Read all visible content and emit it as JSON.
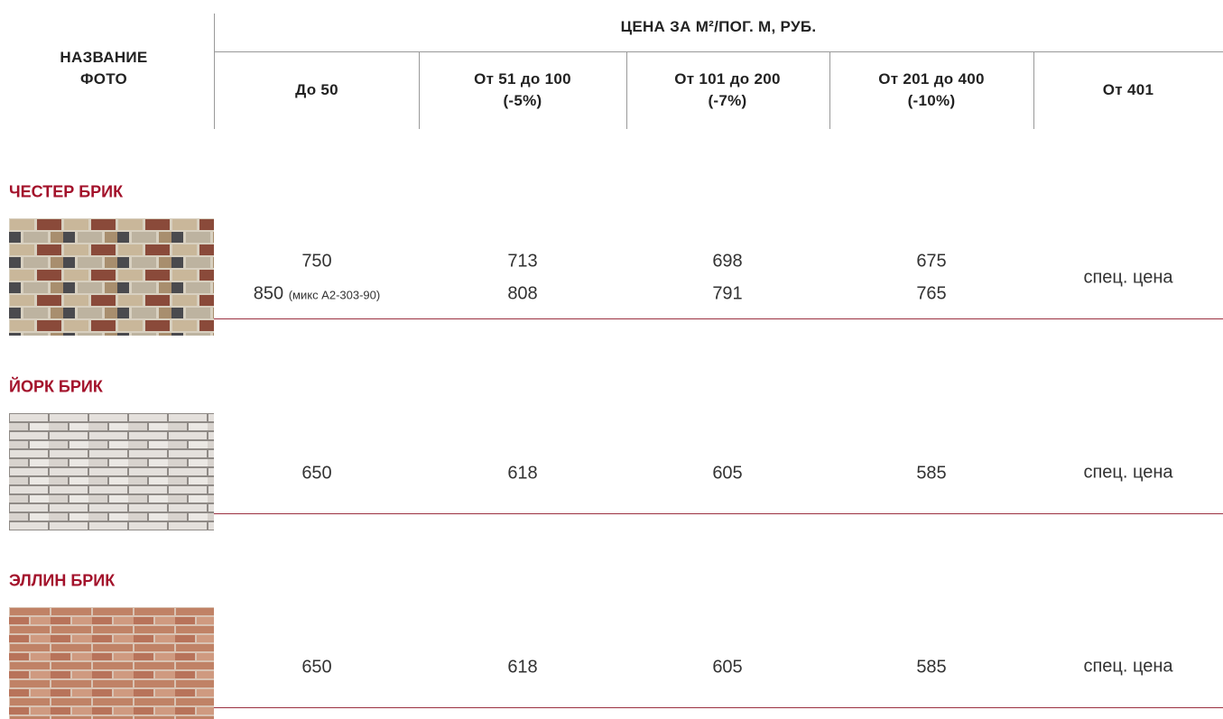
{
  "header": {
    "name_column": "НАЗВАНИЕ ФОТО",
    "price_title": "ЦЕНА ЗА М²/ПОГ. М, РУБ.",
    "columns": [
      [
        "До 50"
      ],
      [
        "От 51 до 100",
        "(-5%)"
      ],
      [
        "От 101 до 200",
        "(-7%)"
      ],
      [
        "От 201 до 400",
        "(-10%)"
      ],
      [
        "От 401"
      ]
    ]
  },
  "products": [
    {
      "name": "ЧЕСТЕР БРИК",
      "rows": [
        [
          750,
          713,
          698,
          675
        ],
        [
          850,
          808,
          791,
          765
        ]
      ],
      "note": "(микс А2-303-90)",
      "special": "спец. цена"
    },
    {
      "name": "ЙОРК БРИК",
      "rows": [
        [
          650,
          618,
          605,
          585
        ]
      ],
      "special": "спец. цена"
    },
    {
      "name": "ЭЛЛИН БРИК",
      "rows": [
        [
          650,
          618,
          605,
          585
        ]
      ],
      "special": "спец. цена"
    }
  ]
}
